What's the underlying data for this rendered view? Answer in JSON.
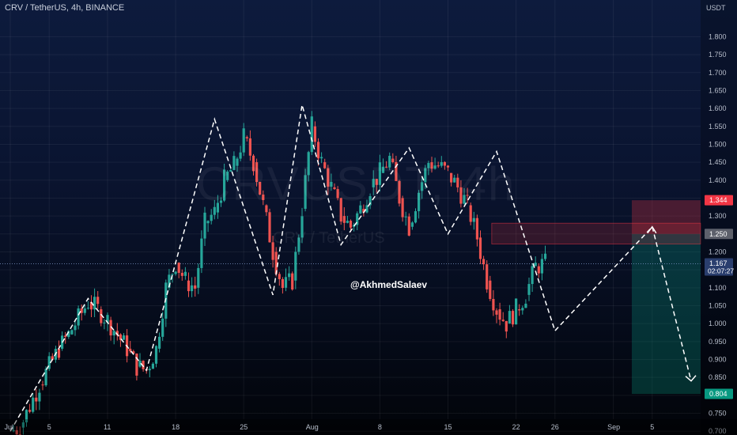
{
  "header": {
    "symbol_title": "CRV / TetherUS, 4h, BINANCE",
    "currency": "USDT"
  },
  "watermark": {
    "title": "CRVUSDT, 4h",
    "subtitle": "CRV / TetherUS"
  },
  "author_tag": "@AkhmedSalaev",
  "price_axis": {
    "ticks": [
      "1.800",
      "1.750",
      "1.700",
      "1.650",
      "1.600",
      "1.550",
      "1.500",
      "1.450",
      "1.400",
      "1.350",
      "1.300",
      "1.250",
      "1.200",
      "1.150",
      "1.100",
      "1.050",
      "1.000",
      "0.950",
      "0.900",
      "0.850",
      "0.800",
      "0.750",
      "0.700"
    ],
    "tick_values": [
      1.8,
      1.75,
      1.7,
      1.65,
      1.6,
      1.55,
      1.5,
      1.45,
      1.4,
      1.35,
      1.3,
      1.25,
      1.2,
      1.15,
      1.1,
      1.05,
      1.0,
      0.95,
      0.9,
      0.85,
      0.8,
      0.75,
      0.7
    ],
    "range": [
      0.685,
      1.845
    ]
  },
  "time_axis": {
    "labels": [
      "Jul",
      "5",
      "11",
      "18",
      "25",
      "Aug",
      "8",
      "15",
      "22",
      "26",
      "Sep",
      "5"
    ],
    "days": [
      1,
      5,
      11,
      18,
      25,
      32,
      39,
      46,
      53,
      57,
      63,
      67
    ],
    "range": [
      1,
      69
    ]
  },
  "price_badges": {
    "stop": {
      "label": "1.344",
      "value": 1.344,
      "color": "#f23645"
    },
    "entry": {
      "label": "1.250",
      "value": 1.25,
      "color": "#5d606b"
    },
    "current": {
      "label": "1.167",
      "value": 1.167,
      "countdown": "02:07:27",
      "color": "#2a3e6e"
    },
    "target": {
      "label": "0.804",
      "value": 0.804,
      "color": "#089981"
    }
  },
  "colors": {
    "up": "#26a69a",
    "down": "#ef5350",
    "loss_zone": "#f23645",
    "profit_zone": "#089981"
  },
  "chart_data": {
    "type": "candlestick",
    "title": "CRV / TetherUS, 4h, BINANCE",
    "y_unit": "USDT",
    "ylim": [
      0.685,
      1.845
    ],
    "x_unit": "day (Jul 1 = 1)",
    "price_path": [
      [
        1,
        0.7
      ],
      [
        2,
        0.71
      ],
      [
        4,
        0.83
      ],
      [
        6,
        0.93
      ],
      [
        7,
        0.97
      ],
      [
        9,
        1.06
      ],
      [
        10,
        1.04
      ],
      [
        11,
        1.01
      ],
      [
        12,
        0.97
      ],
      [
        13,
        0.93
      ],
      [
        14,
        0.88
      ],
      [
        15,
        0.87
      ],
      [
        16,
        0.93
      ],
      [
        17,
        1.1
      ],
      [
        18,
        1.17
      ],
      [
        19,
        1.12
      ],
      [
        20,
        1.1
      ],
      [
        21,
        1.28
      ],
      [
        22,
        1.31
      ],
      [
        23,
        1.4
      ],
      [
        24,
        1.44
      ],
      [
        25,
        1.52
      ],
      [
        26,
        1.45
      ],
      [
        27,
        1.33
      ],
      [
        28,
        1.2
      ],
      [
        29,
        1.1
      ],
      [
        30,
        1.12
      ],
      [
        31,
        1.32
      ],
      [
        32,
        1.55
      ],
      [
        33,
        1.45
      ],
      [
        34,
        1.38
      ],
      [
        35,
        1.3
      ],
      [
        36,
        1.27
      ],
      [
        37,
        1.32
      ],
      [
        38,
        1.38
      ],
      [
        39,
        1.42
      ],
      [
        40,
        1.46
      ],
      [
        41,
        1.35
      ],
      [
        42,
        1.27
      ],
      [
        43,
        1.37
      ],
      [
        44,
        1.45
      ],
      [
        45,
        1.44
      ],
      [
        46,
        1.42
      ],
      [
        47,
        1.38
      ],
      [
        48,
        1.33
      ],
      [
        49,
        1.24
      ],
      [
        50,
        1.12
      ],
      [
        51,
        1.04
      ],
      [
        52,
        1.0
      ],
      [
        53,
        1.04
      ],
      [
        54,
        1.08
      ],
      [
        55,
        1.16
      ],
      [
        56,
        1.167
      ]
    ],
    "drawings": {
      "pattern_path": [
        [
          1,
          0.7
        ],
        [
          9,
          1.07
        ],
        [
          15,
          0.87
        ],
        [
          22,
          1.57
        ],
        [
          28,
          1.08
        ],
        [
          31,
          1.61
        ],
        [
          35,
          1.22
        ],
        [
          42,
          1.49
        ],
        [
          46,
          1.25
        ],
        [
          51,
          1.48
        ],
        [
          57,
          0.98
        ],
        [
          67,
          1.27
        ],
        [
          71,
          0.84
        ]
      ],
      "resistance_zone": [
        1.28,
        1.222
      ],
      "position": {
        "entry": 1.25,
        "stop": 1.344,
        "target": 0.804,
        "start_day": 64.9
      }
    }
  }
}
